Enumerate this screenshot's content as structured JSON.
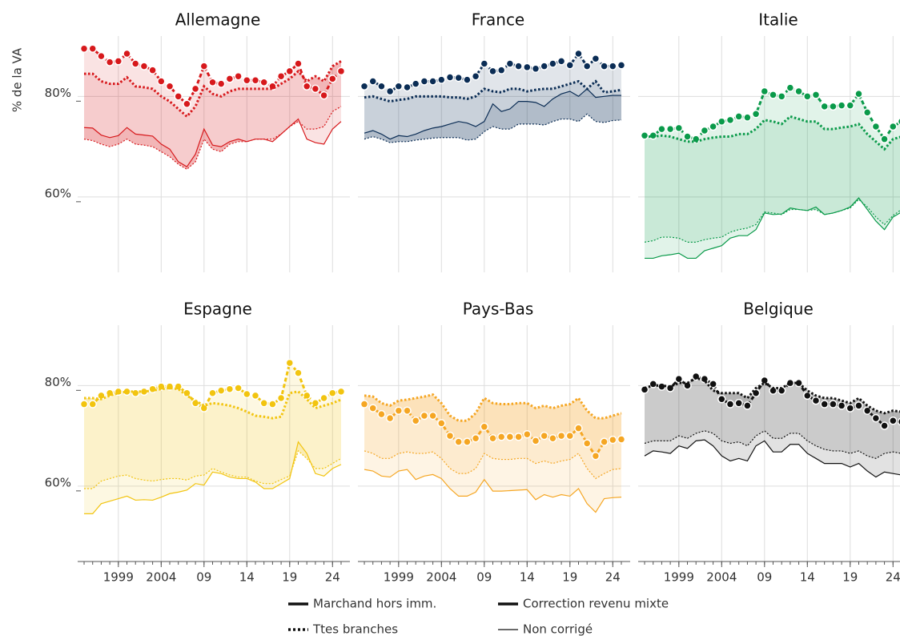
{
  "chart_data": {
    "type": "line",
    "y_label": "% de la VA",
    "x": [
      1995,
      1996,
      1997,
      1998,
      1999,
      2000,
      2001,
      2002,
      2003,
      2004,
      2005,
      2006,
      2007,
      2008,
      2009,
      2010,
      2011,
      2012,
      2013,
      2014,
      2015,
      2016,
      2017,
      2018,
      2019,
      2020,
      2021,
      2022,
      2023,
      2024,
      2025
    ],
    "xlim": [
      1994.25,
      2026.03
    ],
    "xticks": [
      1999,
      2004,
      {
        "value": 2009,
        "label": "09"
      },
      {
        "value": 2014,
        "label": "14"
      },
      {
        "value": 2019,
        "label": "19"
      },
      {
        "value": 2024,
        "label": "24"
      }
    ],
    "ylim": [
      45,
      92
    ],
    "yticks": [
      {
        "value": 60,
        "label": "60%"
      },
      {
        "value": 80,
        "label": "80%"
      }
    ],
    "grid": true,
    "legend": [
      {
        "label": "Marchand hors imm.",
        "style": "thick"
      },
      {
        "label": "Ttes branches",
        "style": "thick-dotted"
      },
      {
        "label": "Correction revenu mixte",
        "style": "thick"
      },
      {
        "label": "Non corrigé",
        "style": "thin"
      }
    ],
    "panels": [
      {
        "title": "Allemagne",
        "color": "#d7191c",
        "series": [
          {
            "style": "marker",
            "values": [
              89.5,
              89.5,
              88,
              86.8,
              87,
              88.5,
              86.5,
              86,
              85.2,
              83,
              82,
              80,
              78.5,
              81.5,
              86,
              82.8,
              82.5,
              83.5,
              84,
              83.2,
              83.2,
              82.8,
              82,
              84,
              85,
              86.5,
              82,
              81.5,
              80.2,
              83.5,
              85
            ]
          },
          {
            "style": "dotted",
            "values": [
              84.5,
              84.5,
              83,
              82.5,
              82.5,
              83.8,
              82,
              81.8,
              81.5,
              80,
              79,
              77.5,
              76,
              78,
              82,
              80.5,
              80,
              81,
              81.5,
              81.5,
              81.5,
              81.5,
              81.5,
              82.5,
              83.5,
              85,
              83,
              84,
              83,
              86,
              87
            ]
          },
          {
            "style": "thin",
            "values": [
              73.8,
              73.7,
              72.3,
              71.8,
              72.2,
              73.8,
              72.5,
              72.3,
              72.1,
              70.5,
              69.5,
              67,
              66,
              68.5,
              73.5,
              70.3,
              70,
              71,
              71.5,
              71,
              71.5,
              71.5,
              71,
              72.5,
              74,
              75.5,
              71.5,
              70.8,
              70.5,
              73.5,
              75
            ]
          },
          {
            "style": "thin-dotted",
            "values": [
              71.5,
              71.2,
              70.5,
              70,
              70.5,
              71.5,
              70.5,
              70.3,
              70,
              69,
              68,
              66.5,
              65.5,
              67,
              71.5,
              69.5,
              69,
              70.5,
              71,
              71,
              71.5,
              71.5,
              71.5,
              72.5,
              74,
              75,
              73.5,
              73.5,
              74,
              77,
              78
            ]
          }
        ]
      },
      {
        "title": "France",
        "color": "#0b2d55",
        "series": [
          {
            "style": "marker",
            "values": [
              82,
              83,
              82,
              81,
              82,
              81.8,
              82.5,
              83,
              83,
              83.3,
              83.8,
              83.7,
              83.3,
              84,
              86.5,
              85,
              85.2,
              86.5,
              86,
              85.8,
              85.5,
              86,
              86.5,
              87,
              86.2,
              88.5,
              86,
              87.5,
              86,
              86,
              86.2
            ]
          },
          {
            "style": "dotted",
            "values": [
              79.8,
              80,
              79.5,
              79,
              79.3,
              79.5,
              80,
              80,
              80,
              80,
              79.8,
              79.8,
              79.5,
              80,
              81.5,
              81,
              80.8,
              81.5,
              81.5,
              81,
              81.3,
              81.5,
              81.5,
              82,
              82.5,
              83,
              81.5,
              83,
              80.8,
              81,
              81.3
            ]
          },
          {
            "style": "thin",
            "values": [
              72.7,
              73.2,
              72.5,
              71.5,
              72.2,
              72,
              72.5,
              73.2,
              73.7,
              74,
              74.5,
              75,
              74.7,
              74,
              75,
              78.5,
              77,
              77.5,
              79,
              79,
              78.8,
              78,
              79.5,
              80.5,
              81,
              80,
              81.5,
              79.8,
              80,
              80.2,
              80.2
            ]
          },
          {
            "style": "thin-dotted",
            "values": [
              71.5,
              72,
              71.5,
              70.8,
              71,
              71,
              71.3,
              71.5,
              71.7,
              71.8,
              71.8,
              71.8,
              71.3,
              71.5,
              73,
              74,
              73.5,
              73.5,
              74.5,
              74.5,
              74.5,
              74.3,
              75,
              75.5,
              75.5,
              75,
              76.5,
              75,
              74.8,
              75.2,
              75.3
            ]
          }
        ]
      },
      {
        "title": "Italie",
        "color": "#0a9a4a",
        "series": [
          {
            "style": "marker",
            "values": [
              72.2,
              72.2,
              73.5,
              73.5,
              73.7,
              72,
              71.5,
              73.2,
              74,
              75,
              75.3,
              76,
              75.8,
              76.5,
              81,
              80.3,
              80,
              81.7,
              81,
              80,
              80.3,
              78,
              78,
              78.2,
              78.2,
              80.5,
              76.8,
              74,
              71.5,
              74,
              75
            ]
          },
          {
            "style": "dotted",
            "values": [
              72,
              72,
              72.2,
              72,
              71.5,
              71,
              71,
              71.5,
              71.8,
              72,
              72,
              72.5,
              72.5,
              73.5,
              75.3,
              75,
              74.5,
              76,
              75.5,
              75,
              75,
              73.5,
              73.5,
              73.8,
              74,
              74.5,
              72.5,
              71,
              69.5,
              71.5,
              72
            ]
          },
          {
            "style": "thin",
            "values": [
              47.8,
              47.8,
              48.3,
              48.5,
              48.8,
              47.8,
              47.8,
              49.3,
              49.8,
              50.3,
              51.8,
              52.3,
              52.3,
              53.5,
              56.8,
              56.5,
              56.6,
              57.8,
              57.5,
              57.3,
              58,
              56.5,
              56.8,
              57.3,
              58,
              59.8,
              57.5,
              55.2,
              53.5,
              56,
              57
            ]
          },
          {
            "style": "thin-dotted",
            "values": [
              51,
              51.3,
              52,
              52,
              51.8,
              51,
              51,
              51.5,
              51.8,
              52,
              53,
              53.5,
              53.8,
              54.5,
              57,
              56.8,
              56.5,
              57.5,
              57.5,
              57.3,
              57.5,
              56.5,
              56.8,
              57.3,
              57.8,
              59.5,
              58,
              56,
              54.5,
              56.3,
              57.5
            ]
          }
        ]
      },
      {
        "title": "Espagne",
        "color": "#f2c40f",
        "series": [
          {
            "style": "marker",
            "values": [
              76.3,
              76.3,
              78,
              78.5,
              78.8,
              78.8,
              78.5,
              78.8,
              79.3,
              79.8,
              79.8,
              79.8,
              78.5,
              76.5,
              75.5,
              78.5,
              79,
              79.3,
              79.5,
              78.3,
              78,
              76.5,
              76.3,
              77.5,
              84.5,
              82.5,
              78,
              76.5,
              77.5,
              78.5,
              78.8
            ]
          },
          {
            "style": "dotted",
            "values": [
              77.5,
              77.5,
              77.3,
              78,
              78.5,
              78.8,
              78.8,
              78.8,
              79,
              79.3,
              79.5,
              79.3,
              78,
              77,
              76,
              76.5,
              76.3,
              76,
              75.5,
              74.8,
              74,
              73.8,
              73.5,
              73.8,
              78.5,
              78.8,
              77.3,
              75.5,
              76,
              76.5,
              77.2
            ]
          },
          {
            "style": "thin",
            "values": [
              54.5,
              54.5,
              56.5,
              57,
              57.5,
              58,
              57.2,
              57.3,
              57.2,
              57.8,
              58.5,
              58.8,
              59.2,
              60.5,
              60.2,
              62.8,
              62.5,
              61.8,
              61.5,
              61.5,
              60.8,
              59.5,
              59.5,
              60.5,
              61.5,
              68.8,
              66.5,
              62.5,
              62,
              63.5,
              64.3
            ]
          },
          {
            "style": "thin-dotted",
            "values": [
              59.5,
              59.5,
              61,
              61.5,
              62,
              62.2,
              61.5,
              61.2,
              61,
              61.3,
              61.5,
              61.5,
              61.2,
              62,
              62.2,
              63.5,
              62.8,
              62.2,
              61.8,
              61.8,
              61,
              60.5,
              60.5,
              61.3,
              62,
              67,
              65.5,
              63.5,
              63.5,
              64.5,
              65.5
            ]
          }
        ]
      },
      {
        "title": "Pays-Bas",
        "color": "#f5a623",
        "series": [
          {
            "style": "marker",
            "values": [
              76.3,
              75.5,
              74.3,
              73.5,
              75,
              75,
              73,
              74,
              74,
              72.5,
              70,
              68.8,
              68.8,
              69.5,
              71.8,
              69.5,
              69.8,
              69.8,
              69.8,
              70.3,
              69,
              70,
              69.5,
              70,
              70,
              71.5,
              68.5,
              66,
              68.8,
              69.2,
              69.3
            ]
          },
          {
            "style": "dotted",
            "values": [
              78,
              77.8,
              76.5,
              76,
              77,
              77.2,
              77.5,
              77.8,
              78.2,
              76.5,
              74,
              73,
              73,
              74.5,
              77.5,
              76.5,
              76.3,
              76.3,
              76.5,
              76.5,
              75.5,
              76,
              75.5,
              76,
              76.3,
              77.5,
              75,
              73.5,
              73.5,
              74,
              74.5
            ]
          },
          {
            "style": "thin",
            "values": [
              63.3,
              63,
              62,
              61.8,
              63,
              63.3,
              61.3,
              62,
              62.3,
              61.5,
              59.5,
              58,
              58,
              58.8,
              61.3,
              59,
              59,
              59.1,
              59.2,
              59.3,
              57.3,
              58.3,
              57.8,
              58.3,
              58,
              59.5,
              56.5,
              54.8,
              57.5,
              57.7,
              57.8
            ]
          },
          {
            "style": "thin-dotted",
            "values": [
              67,
              66.5,
              65.5,
              65.5,
              66.5,
              66.8,
              66.5,
              66.5,
              66.8,
              65.5,
              63.5,
              62.5,
              62.5,
              63.5,
              66.5,
              65.5,
              65.3,
              65.3,
              65.5,
              65.5,
              64.5,
              65,
              64.5,
              65,
              65.3,
              66.5,
              63.5,
              61.5,
              62.5,
              63.3,
              63.5
            ]
          }
        ]
      },
      {
        "title": "Belgique",
        "color": "#111111",
        "series": [
          {
            "style": "marker",
            "values": [
              79.2,
              80.3,
              79.8,
              79.5,
              81.3,
              80,
              81.8,
              81.3,
              80.3,
              77.3,
              76.3,
              76.5,
              76,
              78.5,
              81,
              79,
              79,
              80.5,
              80.5,
              78,
              77,
              76.3,
              76.3,
              76,
              75.5,
              76,
              75,
              73.5,
              72,
              73,
              72.8
            ]
          },
          {
            "style": "dotted",
            "values": [
              79.5,
              80,
              80,
              79.8,
              80.5,
              80.5,
              81.5,
              81,
              79,
              78.5,
              78.5,
              78.5,
              77.5,
              79.5,
              80.5,
              79.5,
              79.5,
              80.5,
              80.5,
              79,
              78,
              77.5,
              77.5,
              77,
              76.5,
              77.5,
              76,
              75,
              74.5,
              75,
              74.8
            ]
          },
          {
            "style": "thin",
            "values": [
              66,
              67,
              66.8,
              66.5,
              68,
              67.5,
              69,
              69.2,
              68,
              66,
              65,
              65.5,
              65,
              68,
              69,
              66.8,
              66.8,
              68.3,
              68.3,
              66.5,
              65.5,
              64.5,
              64.5,
              64.5,
              63.8,
              64.5,
              63,
              61.8,
              62.8,
              62.5,
              62.2
            ]
          },
          {
            "style": "thin-dotted",
            "values": [
              68.5,
              69,
              69,
              69,
              70,
              69.5,
              70.5,
              71,
              70.5,
              69,
              68.5,
              68.8,
              68,
              70,
              71,
              69.5,
              69.5,
              70.5,
              70.5,
              69,
              68,
              67.3,
              67,
              67,
              66.5,
              67,
              66,
              65.5,
              66.5,
              66.8,
              66.5
            ]
          }
        ]
      }
    ]
  }
}
